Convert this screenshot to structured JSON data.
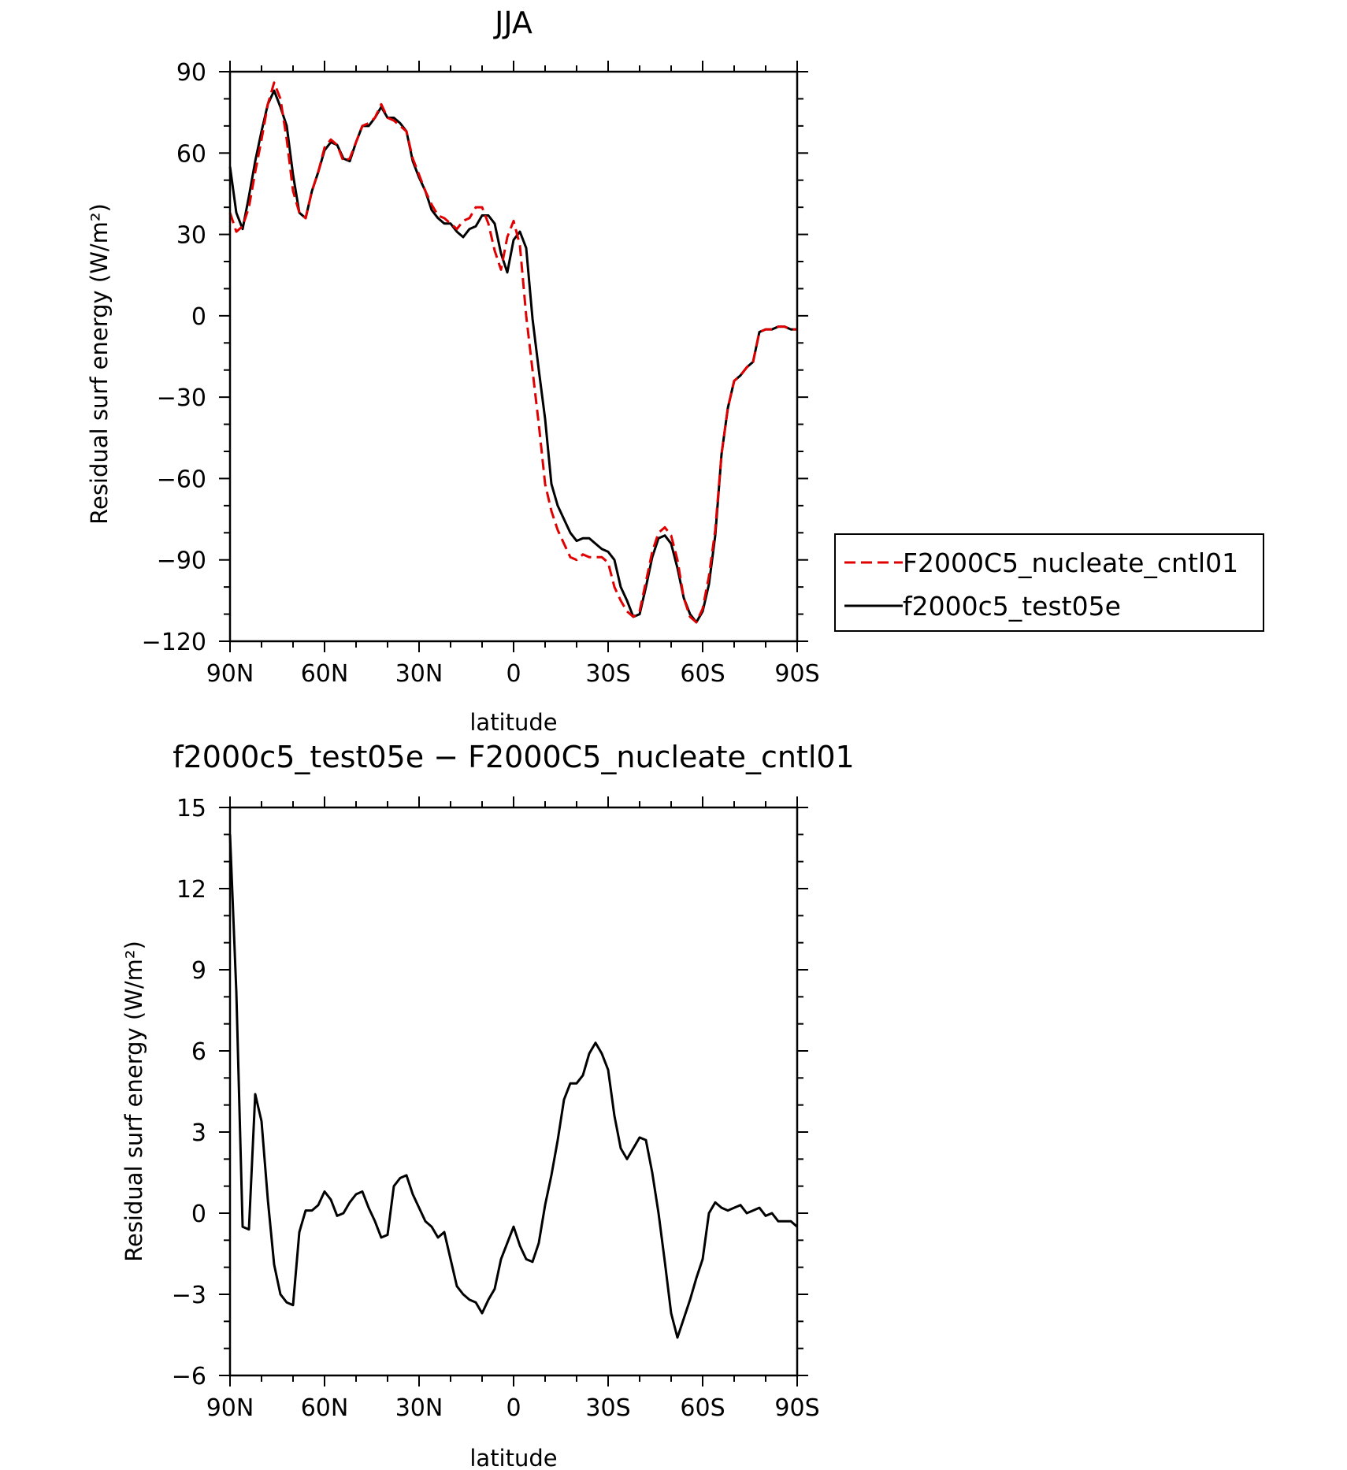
{
  "chart_data": [
    {
      "type": "line",
      "title": "JJA",
      "xlabel": "latitude",
      "ylabel": "Residual surf energy (W/m²)",
      "x_tick_labels": [
        "90N",
        "60N",
        "30N",
        "0",
        "30S",
        "60S",
        "90S"
      ],
      "x_tick_values": [
        90,
        60,
        30,
        0,
        -30,
        -60,
        -90
      ],
      "xlim": [
        90,
        -90
      ],
      "ylim": [
        -120,
        90
      ],
      "y_ticks": [
        90,
        60,
        30,
        0,
        -30,
        -60,
        -90,
        -120
      ],
      "y_tick_labels": [
        "90",
        "60",
        "30",
        "0",
        "−30",
        "−60",
        "−90",
        "−120"
      ],
      "legend_position": "right",
      "series": [
        {
          "name": "F2000C5_nucleate_cntl01",
          "color": "#e00000",
          "dash": "dashed",
          "x": [
            90,
            88,
            86,
            84,
            82,
            80,
            78,
            76,
            74,
            72,
            70,
            68,
            66,
            64,
            62,
            60,
            58,
            56,
            54,
            52,
            50,
            48,
            46,
            44,
            42,
            40,
            38,
            36,
            34,
            32,
            30,
            28,
            26,
            24,
            22,
            20,
            18,
            16,
            14,
            12,
            10,
            8,
            6,
            4,
            2,
            0,
            -2,
            -4,
            -6,
            -8,
            -10,
            -12,
            -14,
            -16,
            -18,
            -20,
            -22,
            -24,
            -26,
            -28,
            -30,
            -32,
            -34,
            -36,
            -38,
            -40,
            -42,
            -44,
            -46,
            -48,
            -50,
            -52,
            -54,
            -56,
            -58,
            -60,
            -62,
            -64,
            -66,
            -68,
            -70,
            -72,
            -74,
            -76,
            -78,
            -80,
            -82,
            -84,
            -86,
            -88,
            -90
          ],
          "y": [
            38,
            31,
            33,
            40,
            53,
            65,
            78,
            86,
            80,
            65,
            46,
            38,
            36,
            46,
            53,
            62,
            65,
            63,
            57,
            58,
            64,
            70,
            71,
            73,
            78,
            73,
            72,
            70,
            68,
            58,
            52,
            46,
            41,
            37,
            36,
            34,
            32,
            35,
            36,
            40,
            40,
            34,
            24,
            17,
            29,
            35,
            26,
            0,
            -20,
            -40,
            -62,
            -72,
            -79,
            -84,
            -89,
            -90,
            -88,
            -89,
            -89,
            -89,
            -91,
            -100,
            -105,
            -109,
            -111,
            -109,
            -98,
            -87,
            -80,
            -78,
            -81,
            -90,
            -104,
            -111,
            -113,
            -108,
            -96,
            -79,
            -51,
            -34,
            -24,
            -22,
            -19,
            -17,
            -6,
            -5,
            -5,
            -4,
            -4,
            -5,
            -5
          ]
        },
        {
          "name": "f2000c5_test05e",
          "color": "#000000",
          "dash": "solid",
          "x": [
            90,
            88,
            86,
            84,
            82,
            80,
            78,
            76,
            74,
            72,
            70,
            68,
            66,
            64,
            62,
            60,
            58,
            56,
            54,
            52,
            50,
            48,
            46,
            44,
            42,
            40,
            38,
            36,
            34,
            32,
            30,
            28,
            26,
            24,
            22,
            20,
            18,
            16,
            14,
            12,
            10,
            8,
            6,
            4,
            2,
            0,
            -2,
            -4,
            -6,
            -8,
            -10,
            -12,
            -14,
            -16,
            -18,
            -20,
            -22,
            -24,
            -26,
            -28,
            -30,
            -32,
            -34,
            -36,
            -38,
            -40,
            -42,
            -44,
            -46,
            -48,
            -50,
            -52,
            -54,
            -56,
            -58,
            -60,
            -62,
            -64,
            -66,
            -68,
            -70,
            -72,
            -74,
            -76,
            -78,
            -80,
            -82,
            -84,
            -86,
            -88,
            -90
          ],
          "y": [
            55,
            38,
            32,
            44,
            57,
            68,
            78,
            83,
            77,
            70,
            52,
            38,
            36,
            46,
            53,
            61,
            64,
            63,
            58,
            57,
            64,
            70,
            70,
            73,
            77,
            73,
            73,
            71,
            68,
            57,
            51,
            46,
            39,
            36,
            34,
            34,
            31,
            29,
            32,
            33,
            37,
            37,
            34,
            23,
            16,
            28,
            31,
            25,
            -1,
            -20,
            -38,
            -62,
            -70,
            -75,
            -80,
            -83,
            -82,
            -82,
            -84,
            -86,
            -87,
            -90,
            -100,
            -105,
            -111,
            -110,
            -100,
            -89,
            -82,
            -81,
            -84,
            -93,
            -104,
            -110,
            -113,
            -109,
            -99,
            -81,
            -51,
            -34,
            -24,
            -22,
            -19,
            -17,
            -6,
            -5,
            -5,
            -4,
            -4,
            -5,
            -5
          ]
        }
      ]
    },
    {
      "type": "line",
      "title": "f2000c5_test05e − F2000C5_nucleate_cntl01",
      "xlabel": "latitude",
      "ylabel": "Residual surf energy (W/m²)",
      "x_tick_labels": [
        "90N",
        "60N",
        "30N",
        "0",
        "30S",
        "60S",
        "90S"
      ],
      "x_tick_values": [
        90,
        60,
        30,
        0,
        -30,
        -60,
        -90
      ],
      "xlim": [
        90,
        -90
      ],
      "ylim": [
        -6,
        15
      ],
      "y_ticks": [
        15,
        12,
        9,
        6,
        3,
        0,
        -3,
        -6
      ],
      "y_tick_labels": [
        "15",
        "12",
        "9",
        "6",
        "3",
        "0",
        "−3",
        "−6"
      ],
      "series": [
        {
          "name": "",
          "color": "#000000",
          "dash": "solid",
          "x": [
            90,
            88,
            86,
            84,
            82,
            80,
            78,
            76,
            74,
            72,
            70,
            68,
            66,
            64,
            62,
            60,
            58,
            56,
            54,
            52,
            50,
            48,
            46,
            44,
            42,
            40,
            38,
            36,
            34,
            32,
            30,
            28,
            26,
            24,
            22,
            20,
            18,
            16,
            14,
            12,
            10,
            8,
            6,
            4,
            2,
            0,
            -2,
            -4,
            -6,
            -8,
            -10,
            -12,
            -14,
            -16,
            -18,
            -20,
            -22,
            -24,
            -26,
            -28,
            -30,
            -32,
            -34,
            -36,
            -38,
            -40,
            -42,
            -44,
            -46,
            -48,
            -50,
            -52,
            -54,
            -56,
            -58,
            -60,
            -62,
            -64,
            -66,
            -68,
            -70,
            -72,
            -74,
            -76,
            -78,
            -80,
            -82,
            -84,
            -86,
            -88,
            -90
          ],
          "y": [
            14,
            8.2,
            -0.5,
            -0.6,
            4.4,
            3.4,
            0.5,
            -1.9,
            -3.0,
            -3.3,
            -3.4,
            -0.7,
            0.1,
            0.1,
            0.3,
            0.8,
            0.5,
            -0.1,
            0.0,
            0.4,
            0.7,
            0.8,
            0.2,
            -0.3,
            -0.9,
            -0.8,
            1.0,
            1.3,
            1.4,
            0.7,
            0.2,
            -0.3,
            -0.5,
            -0.9,
            -0.7,
            -1.7,
            -2.7,
            -3.0,
            -3.2,
            -3.3,
            -3.7,
            -3.2,
            -2.8,
            -1.7,
            -1.1,
            -0.5,
            -1.2,
            -1.7,
            -1.8,
            -1.1,
            0.3,
            1.4,
            2.7,
            4.2,
            4.8,
            4.8,
            5.1,
            5.9,
            6.3,
            5.9,
            5.3,
            3.6,
            2.4,
            2.0,
            2.4,
            2.8,
            2.7,
            1.5,
            0.0,
            -1.8,
            -3.7,
            -4.6,
            -3.9,
            -3.2,
            -2.4,
            -1.7,
            0.0,
            0.4,
            0.2,
            0.1,
            0.2,
            0.3,
            0.0,
            0.1,
            0.2,
            -0.1,
            0.0,
            -0.3,
            -0.3,
            -0.3,
            -0.5
          ]
        }
      ]
    }
  ]
}
